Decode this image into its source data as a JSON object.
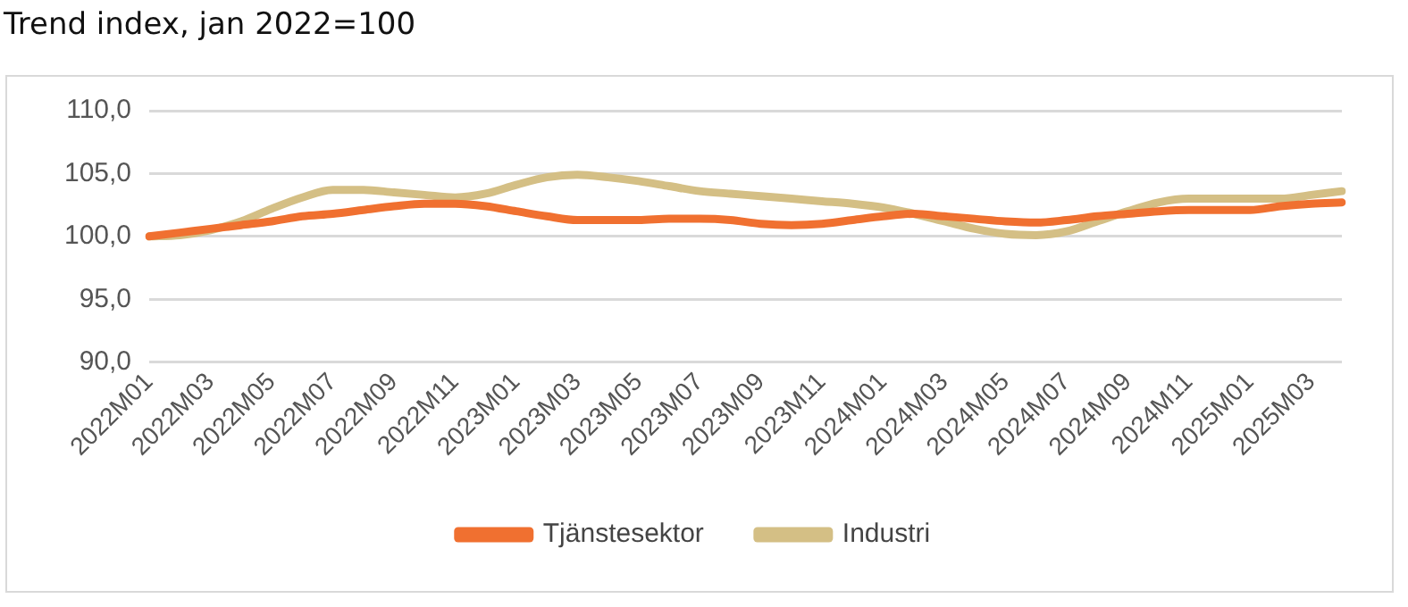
{
  "chart_data": {
    "type": "line",
    "title": "Trend index, jan 2022=100",
    "categories": [
      "2022M01",
      null,
      "2022M03",
      null,
      "2022M05",
      null,
      "2022M07",
      null,
      "2022M09",
      null,
      "2022M11",
      null,
      "2023M01",
      null,
      "2023M03",
      null,
      "2023M05",
      null,
      "2023M07",
      null,
      "2023M09",
      null,
      "2023M11",
      null,
      "2024M01",
      null,
      "2024M03",
      null,
      "2024M05",
      null,
      "2024M07",
      null,
      "2024M09",
      null,
      "2024M11",
      null,
      "2025M01",
      null,
      "2025M03",
      null
    ],
    "series": [
      {
        "name": "Tjänstesektor",
        "color": "#f07030",
        "values": [
          100.0,
          100.3,
          100.6,
          100.9,
          101.2,
          101.6,
          101.8,
          102.1,
          102.4,
          102.6,
          102.6,
          102.4,
          102.0,
          101.6,
          101.3,
          101.3,
          101.3,
          101.4,
          101.4,
          101.3,
          101.0,
          100.9,
          101.0,
          101.3,
          101.6,
          101.8,
          101.6,
          101.4,
          101.2,
          101.1,
          101.3,
          101.6,
          101.8,
          102.0,
          102.1,
          102.1,
          102.1,
          102.4,
          102.6,
          102.7
        ]
      },
      {
        "name": "Industri",
        "color": "#d4bf85",
        "values": [
          100.0,
          100.1,
          100.5,
          101.2,
          102.2,
          103.1,
          103.7,
          103.7,
          103.5,
          103.3,
          103.1,
          103.4,
          104.1,
          104.7,
          104.9,
          104.7,
          104.4,
          104.0,
          103.6,
          103.4,
          103.2,
          103.0,
          102.8,
          102.6,
          102.3,
          101.8,
          101.2,
          100.6,
          100.2,
          100.1,
          100.4,
          101.2,
          102.0,
          102.7,
          103.0,
          103.0,
          103.0,
          103.0,
          103.3,
          103.6
        ]
      }
    ],
    "ylim": [
      90,
      110
    ],
    "yticks": [
      {
        "value": 90,
        "label": "90,0"
      },
      {
        "value": 95,
        "label": "95,0"
      },
      {
        "value": 100,
        "label": "100,0"
      },
      {
        "value": 105,
        "label": "105,0"
      },
      {
        "value": 110,
        "label": "110,0"
      }
    ],
    "grid": "y",
    "legend": "bottom",
    "marker": "none",
    "line_style": "solid"
  }
}
